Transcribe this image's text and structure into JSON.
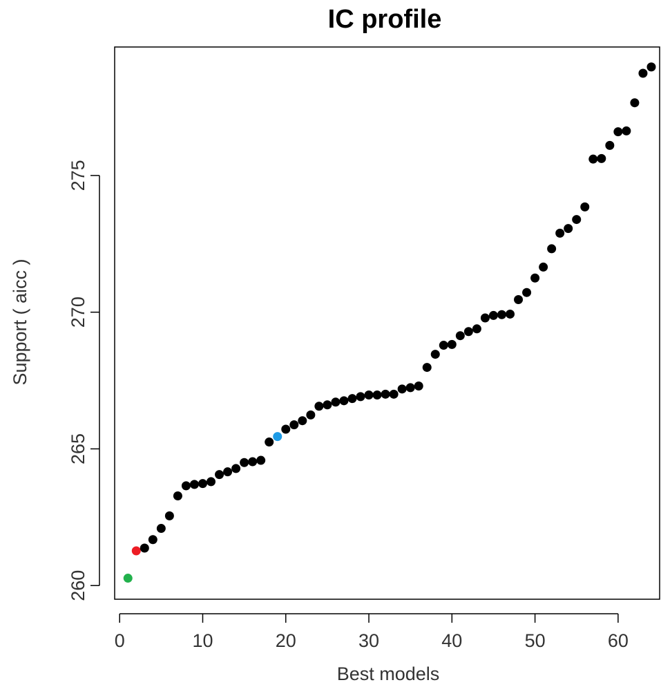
{
  "chart_data": {
    "type": "scatter",
    "title": "IC profile",
    "xlabel": "Best models",
    "ylabel": "Support ( aicc )",
    "xlim": [
      -0.6,
      65
    ],
    "ylim": [
      259.5,
      279.7
    ],
    "xticks": [
      0,
      10,
      20,
      30,
      40,
      50,
      60
    ],
    "yticks": [
      260,
      265,
      270,
      275
    ],
    "grid": false,
    "legend": "none",
    "default_color": "#000000",
    "highlights": [
      {
        "index": 0,
        "color": "#22b14c"
      },
      {
        "index": 1,
        "color": "#ed1c24"
      },
      {
        "index": 18,
        "color": "#1e9be6"
      }
    ],
    "x": [
      1,
      2,
      3,
      4,
      5,
      6,
      7,
      8,
      9,
      10,
      11,
      12,
      13,
      14,
      15,
      16,
      17,
      18,
      19,
      20,
      21,
      22,
      23,
      24,
      25,
      26,
      27,
      28,
      29,
      30,
      31,
      32,
      33,
      34,
      35,
      36,
      37,
      38,
      39,
      40,
      41,
      42,
      43,
      44,
      45,
      46,
      47,
      48,
      49,
      50,
      51,
      52,
      53,
      54,
      55,
      56,
      57,
      58,
      59,
      60,
      61,
      62,
      63,
      64
    ],
    "y": [
      260.27,
      261.27,
      261.37,
      261.68,
      262.09,
      262.55,
      263.28,
      263.65,
      263.7,
      263.73,
      263.8,
      264.06,
      264.16,
      264.28,
      264.5,
      264.53,
      264.58,
      265.25,
      265.45,
      265.72,
      265.88,
      266.03,
      266.24,
      266.56,
      266.61,
      266.71,
      266.76,
      266.84,
      266.91,
      266.97,
      266.97,
      267.0,
      267.0,
      267.19,
      267.24,
      267.3,
      267.98,
      268.46,
      268.79,
      268.82,
      269.14,
      269.29,
      269.39,
      269.79,
      269.88,
      269.91,
      269.93,
      270.46,
      270.72,
      271.25,
      271.65,
      272.32,
      272.89,
      273.06,
      273.39,
      273.85,
      275.6,
      275.62,
      276.1,
      276.6,
      276.63,
      277.66,
      278.74,
      278.97
    ]
  }
}
